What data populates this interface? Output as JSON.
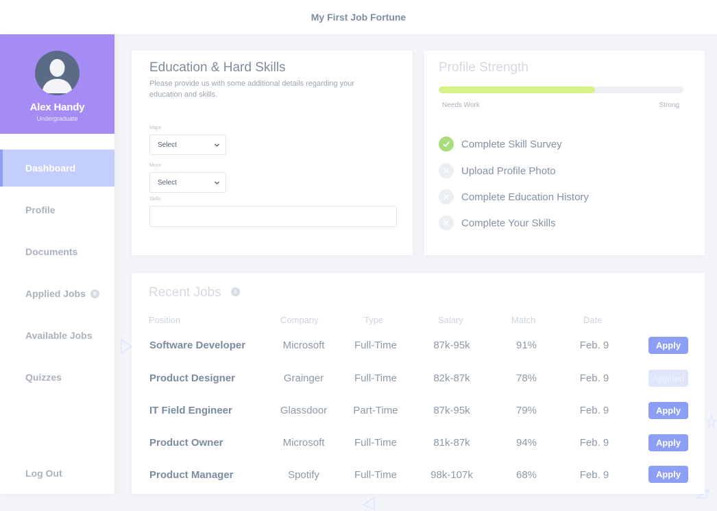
{
  "app": {
    "title": "My First Job Fortune"
  },
  "user": {
    "name": "Alex Handy",
    "role": "Undergraduate"
  },
  "sidebar": {
    "active": "Dashboard",
    "items": [
      {
        "label": "Dashboard"
      },
      {
        "label": "Profile"
      },
      {
        "label": "Documents"
      },
      {
        "label": "Applied Jobs",
        "badge": "6"
      },
      {
        "label": "Available Jobs"
      },
      {
        "label": "Quizzes"
      }
    ],
    "logout": "Log Out"
  },
  "education": {
    "title": "Education & Hard Skills",
    "subtitle": "Please provide us with some additional details regarding your education and skills.",
    "major_label": "Major",
    "major_value": "Select",
    "minor_label": "Minor",
    "minor_value": "Select",
    "skills_label": "Skills",
    "skills_value": ""
  },
  "profile_strength": {
    "title": "Profile Strength",
    "progress": 0.64,
    "min_label": "Needs Work",
    "max_label": "Strong",
    "items": [
      {
        "label": "Complete Skill Survey",
        "done": true
      },
      {
        "label": "Upload Profile Photo",
        "done": false
      },
      {
        "label": "Complete Education History",
        "done": false
      },
      {
        "label": "Complete Your Skills",
        "done": false
      }
    ]
  },
  "recent_jobs": {
    "title": "Recent Jobs",
    "badge": "6",
    "columns": [
      "Position",
      "Company",
      "Type",
      "Salary",
      "Match",
      "Date"
    ],
    "rows": [
      {
        "position": "Software Developer",
        "company": "Microsoft",
        "type": "Full-Time",
        "salary": "87k-95k",
        "match": "91%",
        "date": "Feb. 9",
        "action": "Apply",
        "applied": false
      },
      {
        "position": "Product Designer",
        "company": "Grainger",
        "type": "Full-Time",
        "salary": "82k-87k",
        "match": "78%",
        "date": "Feb. 9",
        "action": "Applied",
        "applied": true
      },
      {
        "position": "IT Field Engineer",
        "company": "Glassdoor",
        "type": "Part-Time",
        "salary": "87k-95k",
        "match": "79%",
        "date": "Feb. 9",
        "action": "Apply",
        "applied": false
      },
      {
        "position": "Product Owner",
        "company": "Microsoft",
        "type": "Full-Time",
        "salary": "81k-87k",
        "match": "94%",
        "date": "Feb. 9",
        "action": "Apply",
        "applied": false
      },
      {
        "position": "Product Manager",
        "company": "Spotify",
        "type": "Full-Time",
        "salary": "98k-107k",
        "match": "68%",
        "date": "Feb. 9",
        "action": "Apply",
        "applied": false
      }
    ]
  },
  "colors": {
    "accent": "#a58cf5",
    "button": "#8c9ff5",
    "progress": "#d8f28a",
    "check": "#a9dd7c"
  }
}
